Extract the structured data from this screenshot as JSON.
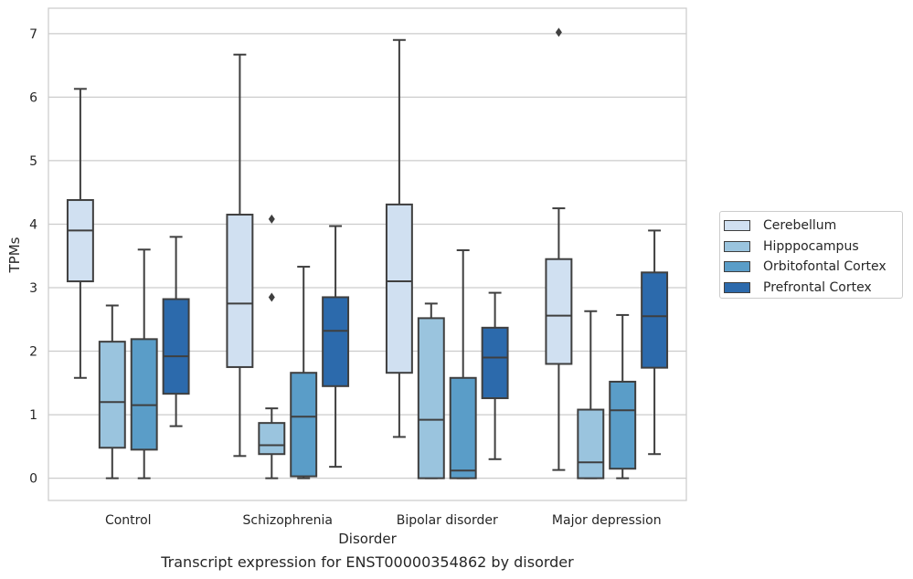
{
  "chart_data": {
    "type": "box",
    "xlabel": "Disorder",
    "ylabel": "TPMs",
    "caption": "Transcript expression for ENST00000354862 by disorder",
    "ylim": [
      -0.35,
      7.4
    ],
    "yticks": [
      0,
      1,
      2,
      3,
      4,
      5,
      6,
      7
    ],
    "grid": "horizontal",
    "legend_position": "right",
    "categories": [
      "Control",
      "Schizophrenia",
      "Bipolar disorder",
      "Major depression"
    ],
    "series": [
      {
        "name": "Cerebellum",
        "color": "#d0e0f1",
        "boxes": [
          {
            "whislo": 1.58,
            "q1": 3.1,
            "median": 3.9,
            "q3": 4.38,
            "whishi": 6.13,
            "fliers": []
          },
          {
            "whislo": 0.35,
            "q1": 1.75,
            "median": 2.75,
            "q3": 4.15,
            "whishi": 6.67,
            "fliers": []
          },
          {
            "whislo": 0.65,
            "q1": 1.66,
            "median": 3.1,
            "q3": 4.31,
            "whishi": 6.9,
            "fliers": []
          },
          {
            "whislo": 0.13,
            "q1": 1.8,
            "median": 2.56,
            "q3": 3.45,
            "whishi": 4.25,
            "fliers": [
              7.02
            ]
          }
        ]
      },
      {
        "name": "Hipppocampus",
        "color": "#9ac4de",
        "boxes": [
          {
            "whislo": 0.0,
            "q1": 0.48,
            "median": 1.2,
            "q3": 2.15,
            "whishi": 2.72,
            "fliers": []
          },
          {
            "whislo": 0.0,
            "q1": 0.38,
            "median": 0.52,
            "q3": 0.87,
            "whishi": 1.1,
            "fliers": [
              2.85,
              4.08
            ]
          },
          {
            "whislo": 0.0,
            "q1": 0.0,
            "median": 0.92,
            "q3": 2.52,
            "whishi": 2.75,
            "fliers": []
          },
          {
            "whislo": 0.0,
            "q1": 0.0,
            "median": 0.25,
            "q3": 1.08,
            "whishi": 2.63,
            "fliers": []
          }
        ]
      },
      {
        "name": "Orbitofontal Cortex",
        "color": "#5a9dc8",
        "boxes": [
          {
            "whislo": 0.0,
            "q1": 0.45,
            "median": 1.15,
            "q3": 2.19,
            "whishi": 3.6,
            "fliers": []
          },
          {
            "whislo": 0.0,
            "q1": 0.03,
            "median": 0.97,
            "q3": 1.66,
            "whishi": 3.33,
            "fliers": []
          },
          {
            "whislo": 0.0,
            "q1": 0.0,
            "median": 0.12,
            "q3": 1.58,
            "whishi": 3.59,
            "fliers": []
          },
          {
            "whislo": 0.0,
            "q1": 0.15,
            "median": 1.07,
            "q3": 1.52,
            "whishi": 2.57,
            "fliers": []
          }
        ]
      },
      {
        "name": "Prefrontal Cortex",
        "color": "#2c6aac",
        "boxes": [
          {
            "whislo": 0.82,
            "q1": 1.33,
            "median": 1.92,
            "q3": 2.82,
            "whishi": 3.8,
            "fliers": []
          },
          {
            "whislo": 0.18,
            "q1": 1.45,
            "median": 2.32,
            "q3": 2.85,
            "whishi": 3.97,
            "fliers": []
          },
          {
            "whislo": 0.3,
            "q1": 1.26,
            "median": 1.9,
            "q3": 2.37,
            "whishi": 2.92,
            "fliers": []
          },
          {
            "whislo": 0.38,
            "q1": 1.74,
            "median": 2.55,
            "q3": 3.24,
            "whishi": 3.9,
            "fliers": []
          }
        ]
      }
    ]
  }
}
